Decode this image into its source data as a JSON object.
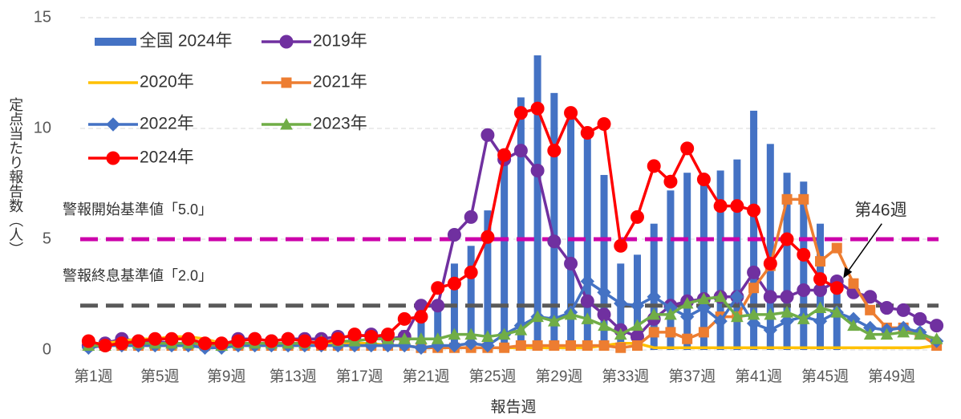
{
  "chart_data": {
    "type": "combo",
    "y_label": "定点当たり報告数（人）",
    "x_label": "報告週",
    "categories": [
      "第1週",
      null,
      null,
      null,
      "第5週",
      null,
      null,
      null,
      "第9週",
      null,
      null,
      null,
      "第13週",
      null,
      null,
      null,
      "第17週",
      null,
      null,
      null,
      "第21週",
      null,
      null,
      null,
      "第25週",
      null,
      null,
      null,
      "第29週",
      null,
      null,
      null,
      "第33週",
      null,
      null,
      null,
      "第37週",
      null,
      null,
      null,
      "第41週",
      null,
      null,
      null,
      "第45週",
      null,
      null,
      null,
      "第49週",
      null,
      null,
      null
    ],
    "ylim": [
      0,
      15
    ],
    "yticks": [
      0,
      5,
      10,
      15
    ],
    "grid": true,
    "series": [
      {
        "name": "全国 2024年",
        "kind": "bar",
        "color": "#4472c4",
        "values": [
          0.3,
          0.3,
          0.3,
          0.3,
          0.3,
          0.3,
          0.3,
          0.3,
          0.3,
          0.3,
          0.3,
          0.3,
          0.3,
          0.3,
          0.3,
          0.4,
          0.4,
          0.5,
          0.6,
          0.9,
          1.3,
          2.0,
          3.9,
          4.7,
          6.3,
          8.6,
          11.4,
          13.3,
          11.6,
          10.5,
          9.8,
          7.9,
          3.9,
          4.3,
          5.7,
          7.2,
          8.0,
          7.6,
          8.1,
          8.6,
          10.8,
          9.3,
          8.0,
          7.6,
          5.7,
          3.0,
          null,
          null,
          null,
          null,
          null,
          null
        ]
      },
      {
        "name": "2019年",
        "kind": "line",
        "marker": "circle",
        "color": "#7030a0",
        "values": [
          0.2,
          0.3,
          0.5,
          0.4,
          0.4,
          0.3,
          0.3,
          0.2,
          0.2,
          0.5,
          0.5,
          0.4,
          0.5,
          0.5,
          0.5,
          0.6,
          0.6,
          0.7,
          0.5,
          0.6,
          2.0,
          2.0,
          5.2,
          6.0,
          9.7,
          8.6,
          9.0,
          8.1,
          4.9,
          3.9,
          2.2,
          1.6,
          0.9,
          0.6,
          1.4,
          2.0,
          2.2,
          2.3,
          2.4,
          2.4,
          3.5,
          2.4,
          2.4,
          2.7,
          2.7,
          3.1,
          2.6,
          2.4,
          1.9,
          1.8,
          1.4,
          1.1
        ]
      },
      {
        "name": "2020年",
        "kind": "line",
        "marker": "none",
        "color": "#ffc000",
        "values": [
          0.3,
          0.3,
          0.4,
          0.5,
          0.5,
          0.6,
          0.6,
          0.5,
          0.3,
          0.3,
          0.3,
          0.3,
          0.3,
          0.3,
          0.3,
          0.3,
          0.3,
          0.3,
          0.2,
          0.2,
          0.1,
          0.1,
          0.1,
          0.1,
          0.1,
          0.1,
          0.1,
          0.1,
          0.1,
          0.1,
          0.1,
          0.2,
          0.3,
          0.3,
          0.1,
          0.1,
          0.1,
          0.1,
          0.1,
          0.1,
          0.1,
          0.1,
          0.1,
          0.1,
          0.1,
          0.1,
          0.1,
          0.1,
          0.1,
          0.1,
          0.1,
          0.2
        ]
      },
      {
        "name": "2021年",
        "kind": "line",
        "marker": "square",
        "color": "#ed7d31",
        "values": [
          0.2,
          0.2,
          0.2,
          0.2,
          0.2,
          0.2,
          0.2,
          0.2,
          0.2,
          0.2,
          0.2,
          0.2,
          0.2,
          0.2,
          0.2,
          0.2,
          0.2,
          0.2,
          0.2,
          0.2,
          0.1,
          0.1,
          0.1,
          0.1,
          0.1,
          0.1,
          0.2,
          0.2,
          0.2,
          0.2,
          0.2,
          0.2,
          0.1,
          0.2,
          0.8,
          0.8,
          0.5,
          0.8,
          1.5,
          1.5,
          2.8,
          3.8,
          6.8,
          6.8,
          4.0,
          4.6,
          3.0,
          1.8,
          1.0,
          1.0,
          0.7,
          0.2
        ]
      },
      {
        "name": "2022年",
        "kind": "line",
        "marker": "diamond",
        "color": "#4472c4",
        "values": [
          0.1,
          0.2,
          0.2,
          0.2,
          0.2,
          0.2,
          0.2,
          0.1,
          0.1,
          0.2,
          0.2,
          0.2,
          0.2,
          0.2,
          0.2,
          0.2,
          0.2,
          0.2,
          0.2,
          0.2,
          0.1,
          0.2,
          0.2,
          0.3,
          0.2,
          0.7,
          1.1,
          1.5,
          1.4,
          1.7,
          3.1,
          2.6,
          2.1,
          2.0,
          2.4,
          1.9,
          1.5,
          1.9,
          1.3,
          2.4,
          1.2,
          0.9,
          1.3,
          1.5,
          1.3,
          1.7,
          1.4,
          1.0,
          0.9,
          1.0,
          0.8,
          0.4
        ]
      },
      {
        "name": "2023年",
        "kind": "line",
        "marker": "triangle",
        "color": "#70ad47",
        "values": [
          0.2,
          0.2,
          0.3,
          0.3,
          0.3,
          0.3,
          0.3,
          0.3,
          0.2,
          0.3,
          0.3,
          0.3,
          0.3,
          0.3,
          0.4,
          0.4,
          0.4,
          0.5,
          0.5,
          0.5,
          0.5,
          0.5,
          0.7,
          0.7,
          0.6,
          0.7,
          0.9,
          1.5,
          1.3,
          1.6,
          1.4,
          1.1,
          0.7,
          1.1,
          1.6,
          1.6,
          2.1,
          2.3,
          2.4,
          1.5,
          1.6,
          1.6,
          1.7,
          1.4,
          1.9,
          1.7,
          1.1,
          0.7,
          0.7,
          0.8,
          0.7,
          0.5
        ]
      },
      {
        "name": "2024年",
        "kind": "line",
        "marker": "circle",
        "color": "#ff0000",
        "values": [
          0.4,
          0.2,
          0.3,
          0.4,
          0.5,
          0.5,
          0.5,
          0.3,
          0.3,
          0.4,
          0.5,
          0.4,
          0.5,
          0.4,
          0.3,
          0.5,
          0.7,
          0.6,
          0.7,
          1.4,
          1.5,
          2.8,
          3.0,
          3.5,
          5.1,
          8.8,
          10.7,
          10.9,
          9.0,
          10.7,
          9.8,
          10.2,
          4.7,
          6.0,
          8.3,
          7.6,
          9.1,
          7.7,
          6.5,
          6.5,
          6.3,
          3.9,
          5.0,
          4.3,
          3.2,
          2.8,
          null,
          null,
          null,
          null,
          null,
          null
        ]
      }
    ],
    "reference_lines": [
      {
        "label": "警報開始基準値「5.0」",
        "value": 5,
        "color": "#cc00aa"
      },
      {
        "label": "警報終息基準値「2.0」",
        "value": 2,
        "color": "#595959"
      }
    ],
    "annotation": {
      "text": "第46週",
      "series": 6,
      "index": 45
    }
  }
}
